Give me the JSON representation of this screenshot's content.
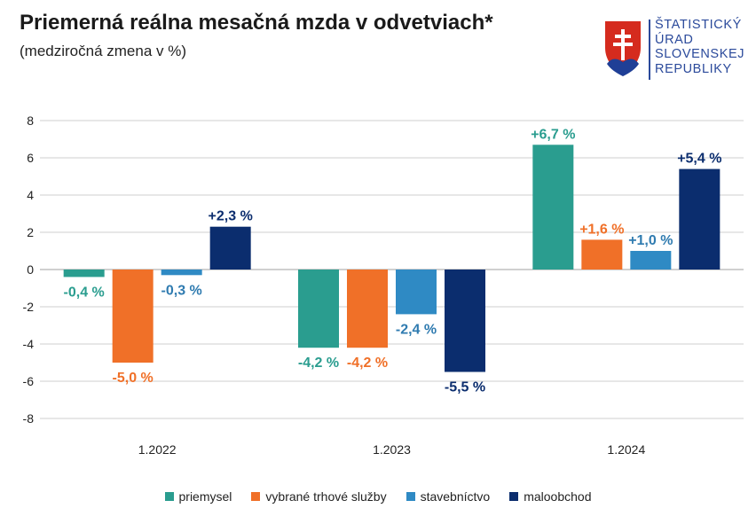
{
  "header": {
    "title": "Priemerná reálna mesačná mzda v odvetviach*",
    "subtitle": "(medziročná zmena v %)"
  },
  "logo": {
    "lines": [
      "ŠTATISTICKÝ",
      "ÚRAD",
      "SLOVENSKEJ",
      "REPUBLIKY"
    ]
  },
  "colors": {
    "priemysel": "#2a9d8f",
    "sluzby": "#f07028",
    "stavebnictvo": "#2f8ac4",
    "maloobchod": "#0b2d6e"
  },
  "chart_data": {
    "type": "bar",
    "title": "Priemerná reálna mesačná mzda v odvetviach*",
    "subtitle": "(medziročná zmena v %)",
    "categories": [
      "1.2022",
      "1.2023",
      "1.2024"
    ],
    "ylim": [
      -8,
      8
    ],
    "yticks": [
      8,
      6,
      4,
      2,
      0,
      -2,
      -4,
      -6,
      -8
    ],
    "grid": true,
    "legend_position": "bottom",
    "series": [
      {
        "name": "priemysel",
        "color": "#2a9d8f",
        "values": [
          -0.4,
          -4.2,
          6.7
        ],
        "labels": [
          "-0,4 %",
          "-4,2 %",
          "+6,7 %"
        ]
      },
      {
        "name": "vybrané trhové služby",
        "color": "#f07028",
        "values": [
          -5.0,
          -4.2,
          1.6
        ],
        "labels": [
          "-5,0 %",
          "-4,2 %",
          "+1,6 %"
        ]
      },
      {
        "name": "stavebníctvo",
        "color": "#2f8ac4",
        "values": [
          -0.3,
          -2.4,
          1.0
        ],
        "labels": [
          "-0,3 %",
          "-2,4 %",
          "+1,0 %"
        ]
      },
      {
        "name": "maloobchod",
        "color": "#0b2d6e",
        "values": [
          2.3,
          -5.5,
          5.4
        ],
        "labels": [
          "+2,3 %",
          "-5,5 %",
          "+5,4 %"
        ]
      }
    ]
  }
}
